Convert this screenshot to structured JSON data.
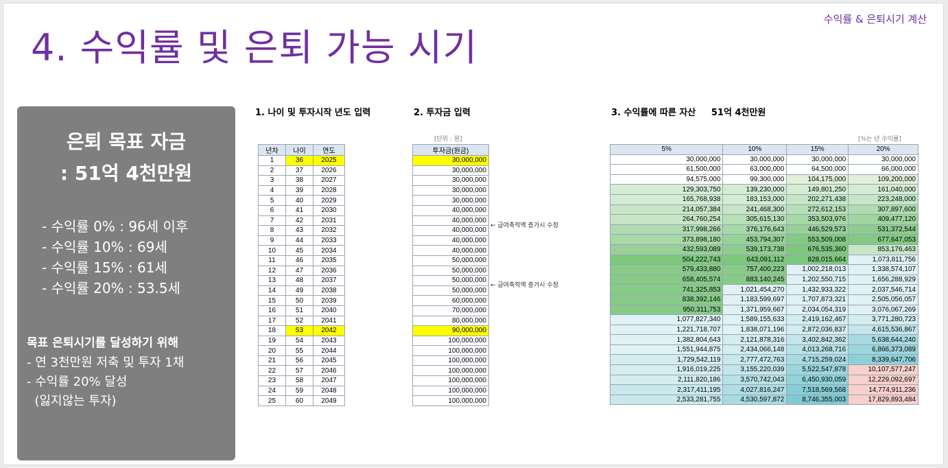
{
  "header": {
    "top_right": "수익률 & 은퇴시기 계산",
    "title": "4. 수익률 및 은퇴 가능 시기"
  },
  "panel": {
    "heading1": "은퇴 목표 자금",
    "heading2": ": 51억 4천만원",
    "rates": [
      "- 수익률   0% : 96세 이후",
      "- 수익률 10% : 69세",
      "- 수익률 15% : 61세",
      "- 수익률 20% : 53.5세"
    ],
    "goal_heading": "목표 은퇴시기를 달성하기 위해",
    "goal_items": [
      "- 연 3천만원 저축 및 투자 1채",
      "- 수익률 20% 달성",
      "  (잃지않는 투자)"
    ]
  },
  "section1": {
    "title": "1. 나이 및 투자시작 년도 입력",
    "headers": [
      "년차",
      "나이",
      "연도"
    ],
    "rows": [
      [
        "1",
        "36",
        "2025"
      ],
      [
        "2",
        "37",
        "2026"
      ],
      [
        "3",
        "38",
        "2027"
      ],
      [
        "4",
        "39",
        "2028"
      ],
      [
        "5",
        "40",
        "2029"
      ],
      [
        "6",
        "41",
        "2030"
      ],
      [
        "7",
        "42",
        "2031"
      ],
      [
        "8",
        "43",
        "2032"
      ],
      [
        "9",
        "44",
        "2033"
      ],
      [
        "10",
        "45",
        "2034"
      ],
      [
        "11",
        "46",
        "2035"
      ],
      [
        "12",
        "47",
        "2036"
      ],
      [
        "13",
        "48",
        "2037"
      ],
      [
        "14",
        "49",
        "2038"
      ],
      [
        "15",
        "50",
        "2039"
      ],
      [
        "16",
        "51",
        "2040"
      ],
      [
        "17",
        "52",
        "2041"
      ],
      [
        "18",
        "53",
        "2042"
      ],
      [
        "19",
        "54",
        "2043"
      ],
      [
        "20",
        "55",
        "2044"
      ],
      [
        "21",
        "56",
        "2045"
      ],
      [
        "22",
        "57",
        "2046"
      ],
      [
        "23",
        "58",
        "2047"
      ],
      [
        "24",
        "59",
        "2048"
      ],
      [
        "25",
        "60",
        "2049"
      ]
    ],
    "highlight_rows": [
      0,
      17
    ]
  },
  "section2": {
    "title": "2. 투자금 입력",
    "unit": "[단위 : 원]",
    "header": "투자금(원금)",
    "values": [
      "30,000,000",
      "30,000,000",
      "30,000,000",
      "30,000,000",
      "30,000,000",
      "40,000,000",
      "40,000,000",
      "40,000,000",
      "40,000,000",
      "40,000,000",
      "50,000,000",
      "50,000,000",
      "50,000,000",
      "50,000,000",
      "60,000,000",
      "70,000,000",
      "80,000,000",
      "90,000,000",
      "100,000,000",
      "100,000,000",
      "100,000,000",
      "100,000,000",
      "100,000,000",
      "100,000,000",
      "100,000,000"
    ],
    "highlight_rows": [
      0,
      17
    ],
    "note1": "← 급여축적액 증가시 수정",
    "note2": "← 급여축적액 증가시 수정"
  },
  "section3": {
    "title": "3. 수익률에 따른 자산     51억 4천만원",
    "unit": "[%는 년 수익률]",
    "headers": [
      "5%",
      "10%",
      "15%",
      "20%"
    ],
    "rows": [
      [
        "30,000,000",
        "30,000,000",
        "30,000,000",
        "30,000,000"
      ],
      [
        "61,500,000",
        "63,000,000",
        "64,500,000",
        "66,000,000"
      ],
      [
        "94,575,000",
        "99,300,000",
        "104,175,000",
        "109,200,000"
      ],
      [
        "129,303,750",
        "139,230,000",
        "149,801,250",
        "161,040,000"
      ],
      [
        "165,768,938",
        "183,153,000",
        "202,271,438",
        "223,248,000"
      ],
      [
        "214,057,384",
        "241,468,300",
        "272,612,153",
        "307,897,600"
      ],
      [
        "264,760,254",
        "305,615,130",
        "353,503,976",
        "409,477,120"
      ],
      [
        "317,998,266",
        "376,176,643",
        "446,529,573",
        "531,372,544"
      ],
      [
        "373,898,180",
        "453,794,307",
        "553,509,008",
        "677,647,053"
      ],
      [
        "432,593,089",
        "539,173,738",
        "676,535,360",
        "853,176,463"
      ],
      [
        "504,222,743",
        "643,091,112",
        "828,015,664",
        "1,073,811,756"
      ],
      [
        "579,433,880",
        "757,400,223",
        "1,002,218,013",
        "1,338,574,107"
      ],
      [
        "658,405,574",
        "883,140,245",
        "1,202,550,715",
        "1,656,288,929"
      ],
      [
        "741,325,853",
        "1,021,454,270",
        "1,432,933,322",
        "2,037,546,714"
      ],
      [
        "838,392,146",
        "1,183,599,697",
        "1,707,873,321",
        "2,505,056,057"
      ],
      [
        "950,311,753",
        "1,371,959,667",
        "2,034,054,319",
        "3,076,067,269"
      ],
      [
        "1,077,827,340",
        "1,589,155,633",
        "2,419,162,467",
        "3,771,280,723"
      ],
      [
        "1,221,718,707",
        "1,838,071,196",
        "2,872,036,837",
        "4,615,536,867"
      ],
      [
        "1,382,804,643",
        "2,121,878,316",
        "3,402,842,362",
        "5,638,644,240"
      ],
      [
        "1,551,944,875",
        "2,434,066,148",
        "4,013,268,716",
        "6,866,373,089"
      ],
      [
        "1,729,542,119",
        "2,777,472,763",
        "4,715,259,024",
        "8,339,647,706"
      ],
      [
        "1,916,019,225",
        "3,155,220,039",
        "5,522,547,878",
        "10,107,577,247"
      ],
      [
        "2,111,820,186",
        "3,570,742,043",
        "6,450,930,059",
        "12,229,092,697"
      ],
      [
        "2,317,411,195",
        "4,027,816,247",
        "7,518,569,568",
        "14,774,911,236"
      ],
      [
        "2,533,281,755",
        "4,530,597,872",
        "8,746,355,003",
        "17,829,893,484"
      ]
    ],
    "colors": [
      [
        "#ffffff",
        "#ffffff",
        "#ffffff",
        "#ffffff"
      ],
      [
        "#ffffff",
        "#ffffff",
        "#ffffff",
        "#ffffff"
      ],
      [
        "#ffffff",
        "#ffffff",
        "#e2f0d9",
        "#e2f0d9"
      ],
      [
        "#d5ecd4",
        "#d5ecd4",
        "#d5ecd4",
        "#d5ecd4"
      ],
      [
        "#d5ecd4",
        "#d5ecd4",
        "#c6e6c6",
        "#c6e6c6"
      ],
      [
        "#c6e6c6",
        "#c6e6c6",
        "#b8e0b8",
        "#b0dcb0"
      ],
      [
        "#c6e6c6",
        "#b8e0b8",
        "#a8d8a8",
        "#a0d4a0"
      ],
      [
        "#b0dcb0",
        "#a8d8a8",
        "#98d098",
        "#8ccc8c"
      ],
      [
        "#a8d8a8",
        "#98d098",
        "#84c984",
        "#84c984"
      ],
      [
        "#98d098",
        "#90cc90",
        "#7ec87e",
        "#c6e6c6"
      ],
      [
        "#7ec87e",
        "#7ec87e",
        "#7ec87e",
        "#e0f2f4"
      ],
      [
        "#88cb88",
        "#88cb88",
        "#e0f2f4",
        "#e0f2f4"
      ],
      [
        "#88cb88",
        "#88cb88",
        "#e0f2f4",
        "#e0f2f4"
      ],
      [
        "#88cb88",
        "#e0f2f4",
        "#e0f2f4",
        "#e0f2f4"
      ],
      [
        "#88cb88",
        "#e0f2f4",
        "#e0f2f4",
        "#e0f2f4"
      ],
      [
        "#88cb88",
        "#e0f2f4",
        "#e0f2f4",
        "#e0f2f4"
      ],
      [
        "#e0f2f4",
        "#e0f2f4",
        "#d4edf0",
        "#d4edf0"
      ],
      [
        "#e0f2f4",
        "#e0f2f4",
        "#d4edf0",
        "#c4e6ea"
      ],
      [
        "#e0f2f4",
        "#d4edf0",
        "#c4e6ea",
        "#a8dbe1"
      ],
      [
        "#e0f2f4",
        "#d4edf0",
        "#b8e2e7",
        "#9cd6dd"
      ],
      [
        "#d4edf0",
        "#c8e8ec",
        "#a8dbe1",
        "#8ed0d8"
      ],
      [
        "#d4edf0",
        "#c4e6ea",
        "#9cd6dd",
        "#f8d0cc"
      ],
      [
        "#d4edf0",
        "#b8e2e7",
        "#92d2da",
        "#f8d0cc"
      ],
      [
        "#c8e8ec",
        "#b0dee4",
        "#86cdd5",
        "#f8d0cc"
      ],
      [
        "#c8e8ec",
        "#a8dbe1",
        "#80cad3",
        "#f8d0cc"
      ]
    ]
  }
}
